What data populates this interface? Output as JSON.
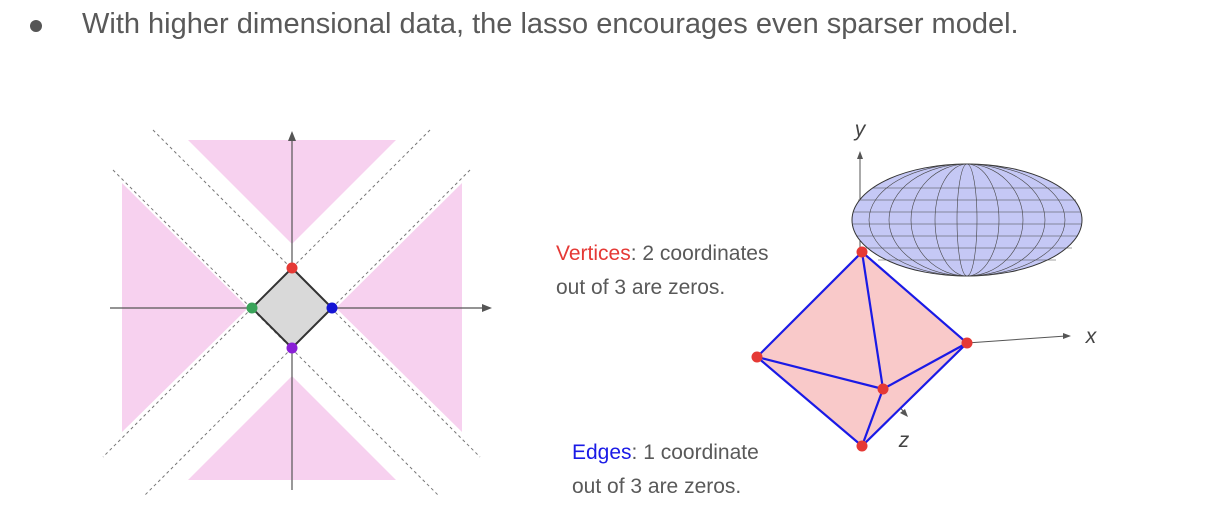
{
  "bullet": {
    "text": "With higher dimensional data, the lasso encourages even sparser model."
  },
  "left_diagram": {
    "region_color": "#f7d1ef",
    "diamond_fill": "#d9d9d9",
    "points": [
      {
        "name": "top-point",
        "color": "#e53935"
      },
      {
        "name": "right-point",
        "color": "#1414d4"
      },
      {
        "name": "bottom-point",
        "color": "#8a1fd6"
      },
      {
        "name": "left-point",
        "color": "#3aa35a"
      }
    ]
  },
  "right_diagram": {
    "axis_labels": {
      "x": "x",
      "y": "y",
      "z": "z"
    },
    "ellipsoid_fill": "#c5c8f5",
    "octahedron_fill": "#f9c9c9",
    "edge_color": "#1a1ae6",
    "vertex_color": "#e53935"
  },
  "captions": {
    "vertices": {
      "highlight": "Vertices",
      "line1_rest": ": 2 coordinates",
      "line2": "out of 3 are zeros."
    },
    "edges": {
      "highlight": "Edges",
      "line1_rest": ": 1 coordinate",
      "line2": "out of 3 are zeros."
    }
  }
}
